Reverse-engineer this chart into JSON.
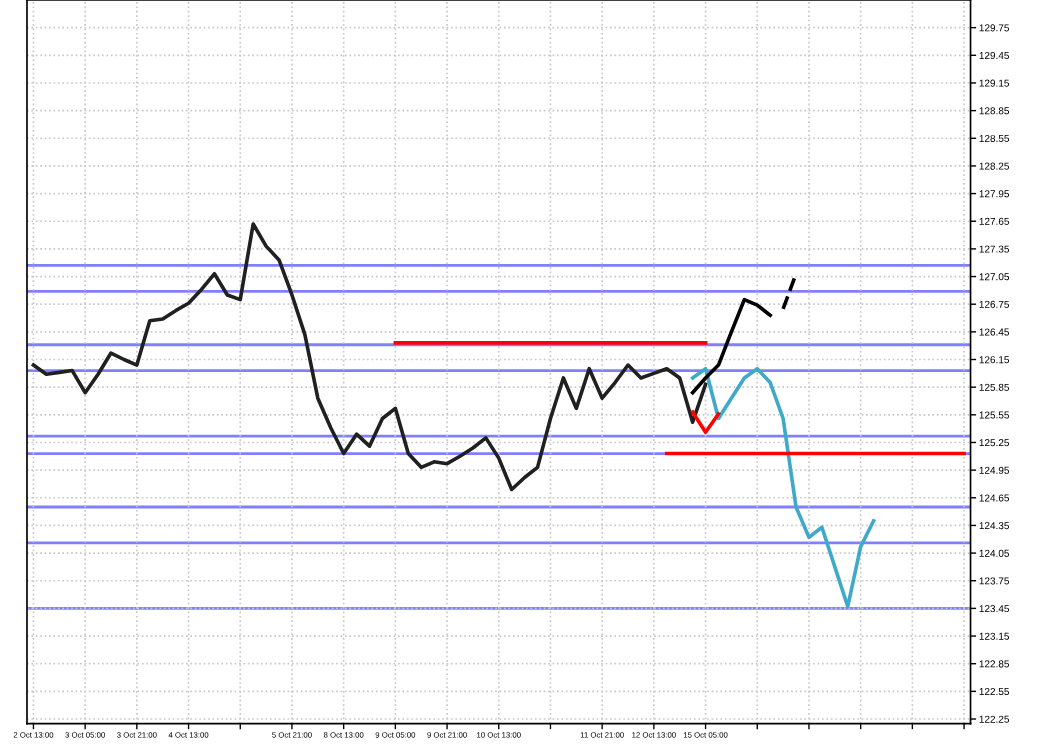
{
  "chart_data": {
    "type": "line",
    "categories": [
      "2 Oct 13:00",
      null,
      null,
      null,
      "3 Oct 05:00",
      null,
      null,
      null,
      "3 Oct 21:00",
      null,
      null,
      null,
      "4 Oct 13:00",
      null,
      null,
      null,
      null,
      null,
      null,
      null,
      "5 Oct 21:00",
      null,
      null,
      null,
      "8 Oct 13:00",
      null,
      null,
      null,
      "9 Oct 05:00",
      null,
      null,
      null,
      "9 Oct 21:00",
      null,
      null,
      null,
      "10 Oct 13:00",
      null,
      null,
      null,
      null,
      null,
      null,
      null,
      "11 Oct 21:00",
      null,
      null,
      null,
      "12 Oct 13:00",
      null,
      null,
      null,
      "15 Oct 05:00",
      null,
      null,
      null,
      null,
      null,
      null,
      null,
      null,
      null,
      null,
      null,
      null,
      null,
      null,
      null,
      null,
      null,
      null,
      null,
      null
    ],
    "ylim": [
      122.2,
      130.05
    ],
    "yticks": [
      122.25,
      122.55,
      122.85,
      123.15,
      123.45,
      123.75,
      124.05,
      124.35,
      124.65,
      124.95,
      125.25,
      125.55,
      125.85,
      126.15,
      126.45,
      126.75,
      127.05,
      127.35,
      127.65,
      127.95,
      128.25,
      128.55,
      128.85,
      129.15,
      129.45,
      129.75
    ],
    "grid": true,
    "marker": "none",
    "series": [
      {
        "color": "#202020",
        "line_style": "solid",
        "values": [
          126.09,
          125.99,
          126.01,
          126.03,
          125.79,
          125.99,
          126.22,
          126.15,
          126.09,
          126.57,
          126.59,
          126.68,
          126.76,
          126.91,
          127.08,
          126.85,
          126.8,
          127.62,
          127.38,
          127.23,
          126.85,
          126.42,
          125.73,
          125.41,
          125.13,
          125.34,
          125.21,
          125.51,
          125.62,
          125.13,
          124.98,
          125.04,
          125.02,
          125.1,
          125.19,
          125.3,
          125.08,
          124.74,
          124.87,
          124.98,
          125.51,
          125.95,
          125.62,
          126.05,
          125.73,
          125.9,
          126.09,
          125.95,
          126.0,
          126.05,
          125.95,
          125.47,
          125.88,
          null,
          null,
          null,
          null,
          null,
          null,
          null,
          null,
          null,
          null,
          null,
          null,
          null,
          null,
          null,
          null,
          null,
          null,
          null,
          null
        ]
      },
      {
        "color": "#3fa9c9",
        "line_style": "solid",
        "values": [
          null,
          null,
          null,
          null,
          null,
          null,
          null,
          null,
          null,
          null,
          null,
          null,
          null,
          null,
          null,
          null,
          null,
          null,
          null,
          null,
          null,
          null,
          null,
          null,
          null,
          null,
          null,
          null,
          null,
          null,
          null,
          null,
          null,
          null,
          null,
          null,
          null,
          null,
          null,
          null,
          null,
          null,
          null,
          null,
          null,
          null,
          null,
          null,
          null,
          null,
          null,
          125.95,
          126.05,
          125.51,
          125.73,
          125.95,
          126.05,
          125.9,
          125.51,
          124.55,
          124.22,
          124.33,
          123.9,
          123.47,
          124.12,
          124.4,
          null,
          null,
          null,
          null,
          null,
          null,
          null
        ]
      },
      {
        "color": "#000000",
        "line_style": "solid",
        "values": [
          null,
          null,
          null,
          null,
          null,
          null,
          null,
          null,
          null,
          null,
          null,
          null,
          null,
          null,
          null,
          null,
          null,
          null,
          null,
          null,
          null,
          null,
          null,
          null,
          null,
          null,
          null,
          null,
          null,
          null,
          null,
          null,
          null,
          null,
          null,
          null,
          null,
          null,
          null,
          null,
          null,
          null,
          null,
          null,
          null,
          null,
          null,
          null,
          null,
          null,
          null,
          125.79,
          125.95,
          126.09,
          126.45,
          126.8,
          126.74,
          126.63,
          null,
          null,
          null,
          null,
          null,
          null,
          null,
          null,
          null,
          null,
          null,
          null,
          null,
          null,
          null
        ]
      },
      {
        "color": "#000000",
        "line_style": "dashed",
        "values": [
          null,
          null,
          null,
          null,
          null,
          null,
          null,
          null,
          null,
          null,
          null,
          null,
          null,
          null,
          null,
          null,
          null,
          null,
          null,
          null,
          null,
          null,
          null,
          null,
          null,
          null,
          null,
          null,
          null,
          null,
          null,
          null,
          null,
          null,
          null,
          null,
          null,
          null,
          null,
          null,
          null,
          null,
          null,
          null,
          null,
          null,
          null,
          null,
          null,
          null,
          null,
          null,
          null,
          null,
          null,
          null,
          null,
          null,
          126.7,
          127.08,
          null,
          null,
          null,
          null,
          null,
          null,
          null,
          null,
          null,
          null,
          null,
          null,
          null
        ]
      },
      {
        "color": "#ff0000",
        "line_style": "solid",
        "values": [
          null,
          null,
          null,
          null,
          null,
          null,
          null,
          null,
          null,
          null,
          null,
          null,
          null,
          null,
          null,
          null,
          null,
          null,
          null,
          null,
          null,
          null,
          null,
          null,
          null,
          null,
          null,
          null,
          null,
          null,
          null,
          null,
          null,
          null,
          null,
          null,
          null,
          null,
          null,
          null,
          null,
          null,
          null,
          null,
          null,
          null,
          null,
          null,
          null,
          null,
          null,
          125.58,
          125.36,
          125.56,
          null,
          null,
          null,
          null,
          null,
          null,
          null,
          null,
          null,
          null,
          null,
          null,
          null,
          null,
          null,
          null,
          null,
          null,
          null
        ]
      },
      {
        "color": "#ff0000",
        "line_style": "solid",
        "values": [
          null,
          null,
          null,
          null,
          null,
          null,
          null,
          null,
          null,
          null,
          null,
          null,
          null,
          null,
          null,
          null,
          null,
          null,
          null,
          null,
          null,
          null,
          null,
          null,
          null,
          null,
          null,
          null,
          126.33,
          126.33,
          126.33,
          126.33,
          126.33,
          126.33,
          126.33,
          126.33,
          126.33,
          126.33,
          126.33,
          126.33,
          126.33,
          126.33,
          126.33,
          126.33,
          126.33,
          126.33,
          126.33,
          126.33,
          126.33,
          126.33,
          126.33,
          126.33,
          126.33,
          null,
          null,
          null,
          null,
          null,
          null,
          null,
          null,
          null,
          null,
          null,
          null,
          null,
          null,
          null,
          null,
          null,
          null,
          null,
          null
        ]
      },
      {
        "color": "#ff0000",
        "line_style": "solid",
        "values": [
          null,
          null,
          null,
          null,
          null,
          null,
          null,
          null,
          null,
          null,
          null,
          null,
          null,
          null,
          null,
          null,
          null,
          null,
          null,
          null,
          null,
          null,
          null,
          null,
          null,
          null,
          null,
          null,
          null,
          null,
          null,
          null,
          null,
          null,
          null,
          null,
          null,
          null,
          null,
          null,
          null,
          null,
          null,
          null,
          null,
          null,
          null,
          null,
          null,
          125.13,
          125.13,
          125.13,
          125.13,
          125.13,
          125.13,
          125.13,
          125.13,
          125.13,
          125.13,
          125.13,
          125.13,
          125.13,
          125.13,
          125.13,
          125.13,
          125.13,
          125.13,
          125.13,
          125.13,
          125.13,
          125.13,
          125.13,
          125.13
        ]
      }
    ],
    "ref_lines": [
      {
        "axis": "y",
        "value": 127.17,
        "color": "#8080ff"
      },
      {
        "axis": "y",
        "value": 126.89,
        "color": "#8080ff"
      },
      {
        "axis": "y",
        "value": 126.31,
        "color": "#8080ff"
      },
      {
        "axis": "y",
        "value": 126.03,
        "color": "#8080ff"
      },
      {
        "axis": "y",
        "value": 125.32,
        "color": "#8080ff"
      },
      {
        "axis": "y",
        "value": 125.13,
        "color": "#8080ff"
      },
      {
        "axis": "y",
        "value": 124.55,
        "color": "#8080ff"
      },
      {
        "axis": "y",
        "value": 124.16,
        "color": "#8080ff"
      },
      {
        "axis": "y",
        "value": 123.45,
        "color": "#8080ff"
      }
    ]
  }
}
